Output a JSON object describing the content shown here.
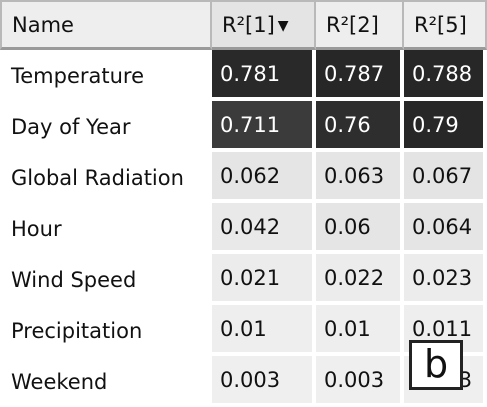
{
  "table": {
    "columns": [
      {
        "label": "Name"
      },
      {
        "label": "R²[1]",
        "sort_indicator": "descending"
      },
      {
        "label": "R²[2]"
      },
      {
        "label": "R²[5]"
      }
    ],
    "rows": [
      {
        "name": "Temperature",
        "values": [
          "0.781",
          "0.787",
          "0.788"
        ]
      },
      {
        "name": "Day of Year",
        "values": [
          "0.711",
          "0.76",
          "0.79"
        ]
      },
      {
        "name": "Global Radiation",
        "values": [
          "0.062",
          "0.063",
          "0.067"
        ]
      },
      {
        "name": "Hour",
        "values": [
          "0.042",
          "0.06",
          "0.064"
        ]
      },
      {
        "name": "Wind Speed",
        "values": [
          "0.021",
          "0.022",
          "0.023"
        ]
      },
      {
        "name": "Precipitation",
        "values": [
          "0.01",
          "0.01",
          "0.011"
        ]
      },
      {
        "name": "Weekend",
        "values": [
          "0.003",
          "0.003",
          "0.003"
        ]
      }
    ]
  },
  "panel_label": "b"
}
